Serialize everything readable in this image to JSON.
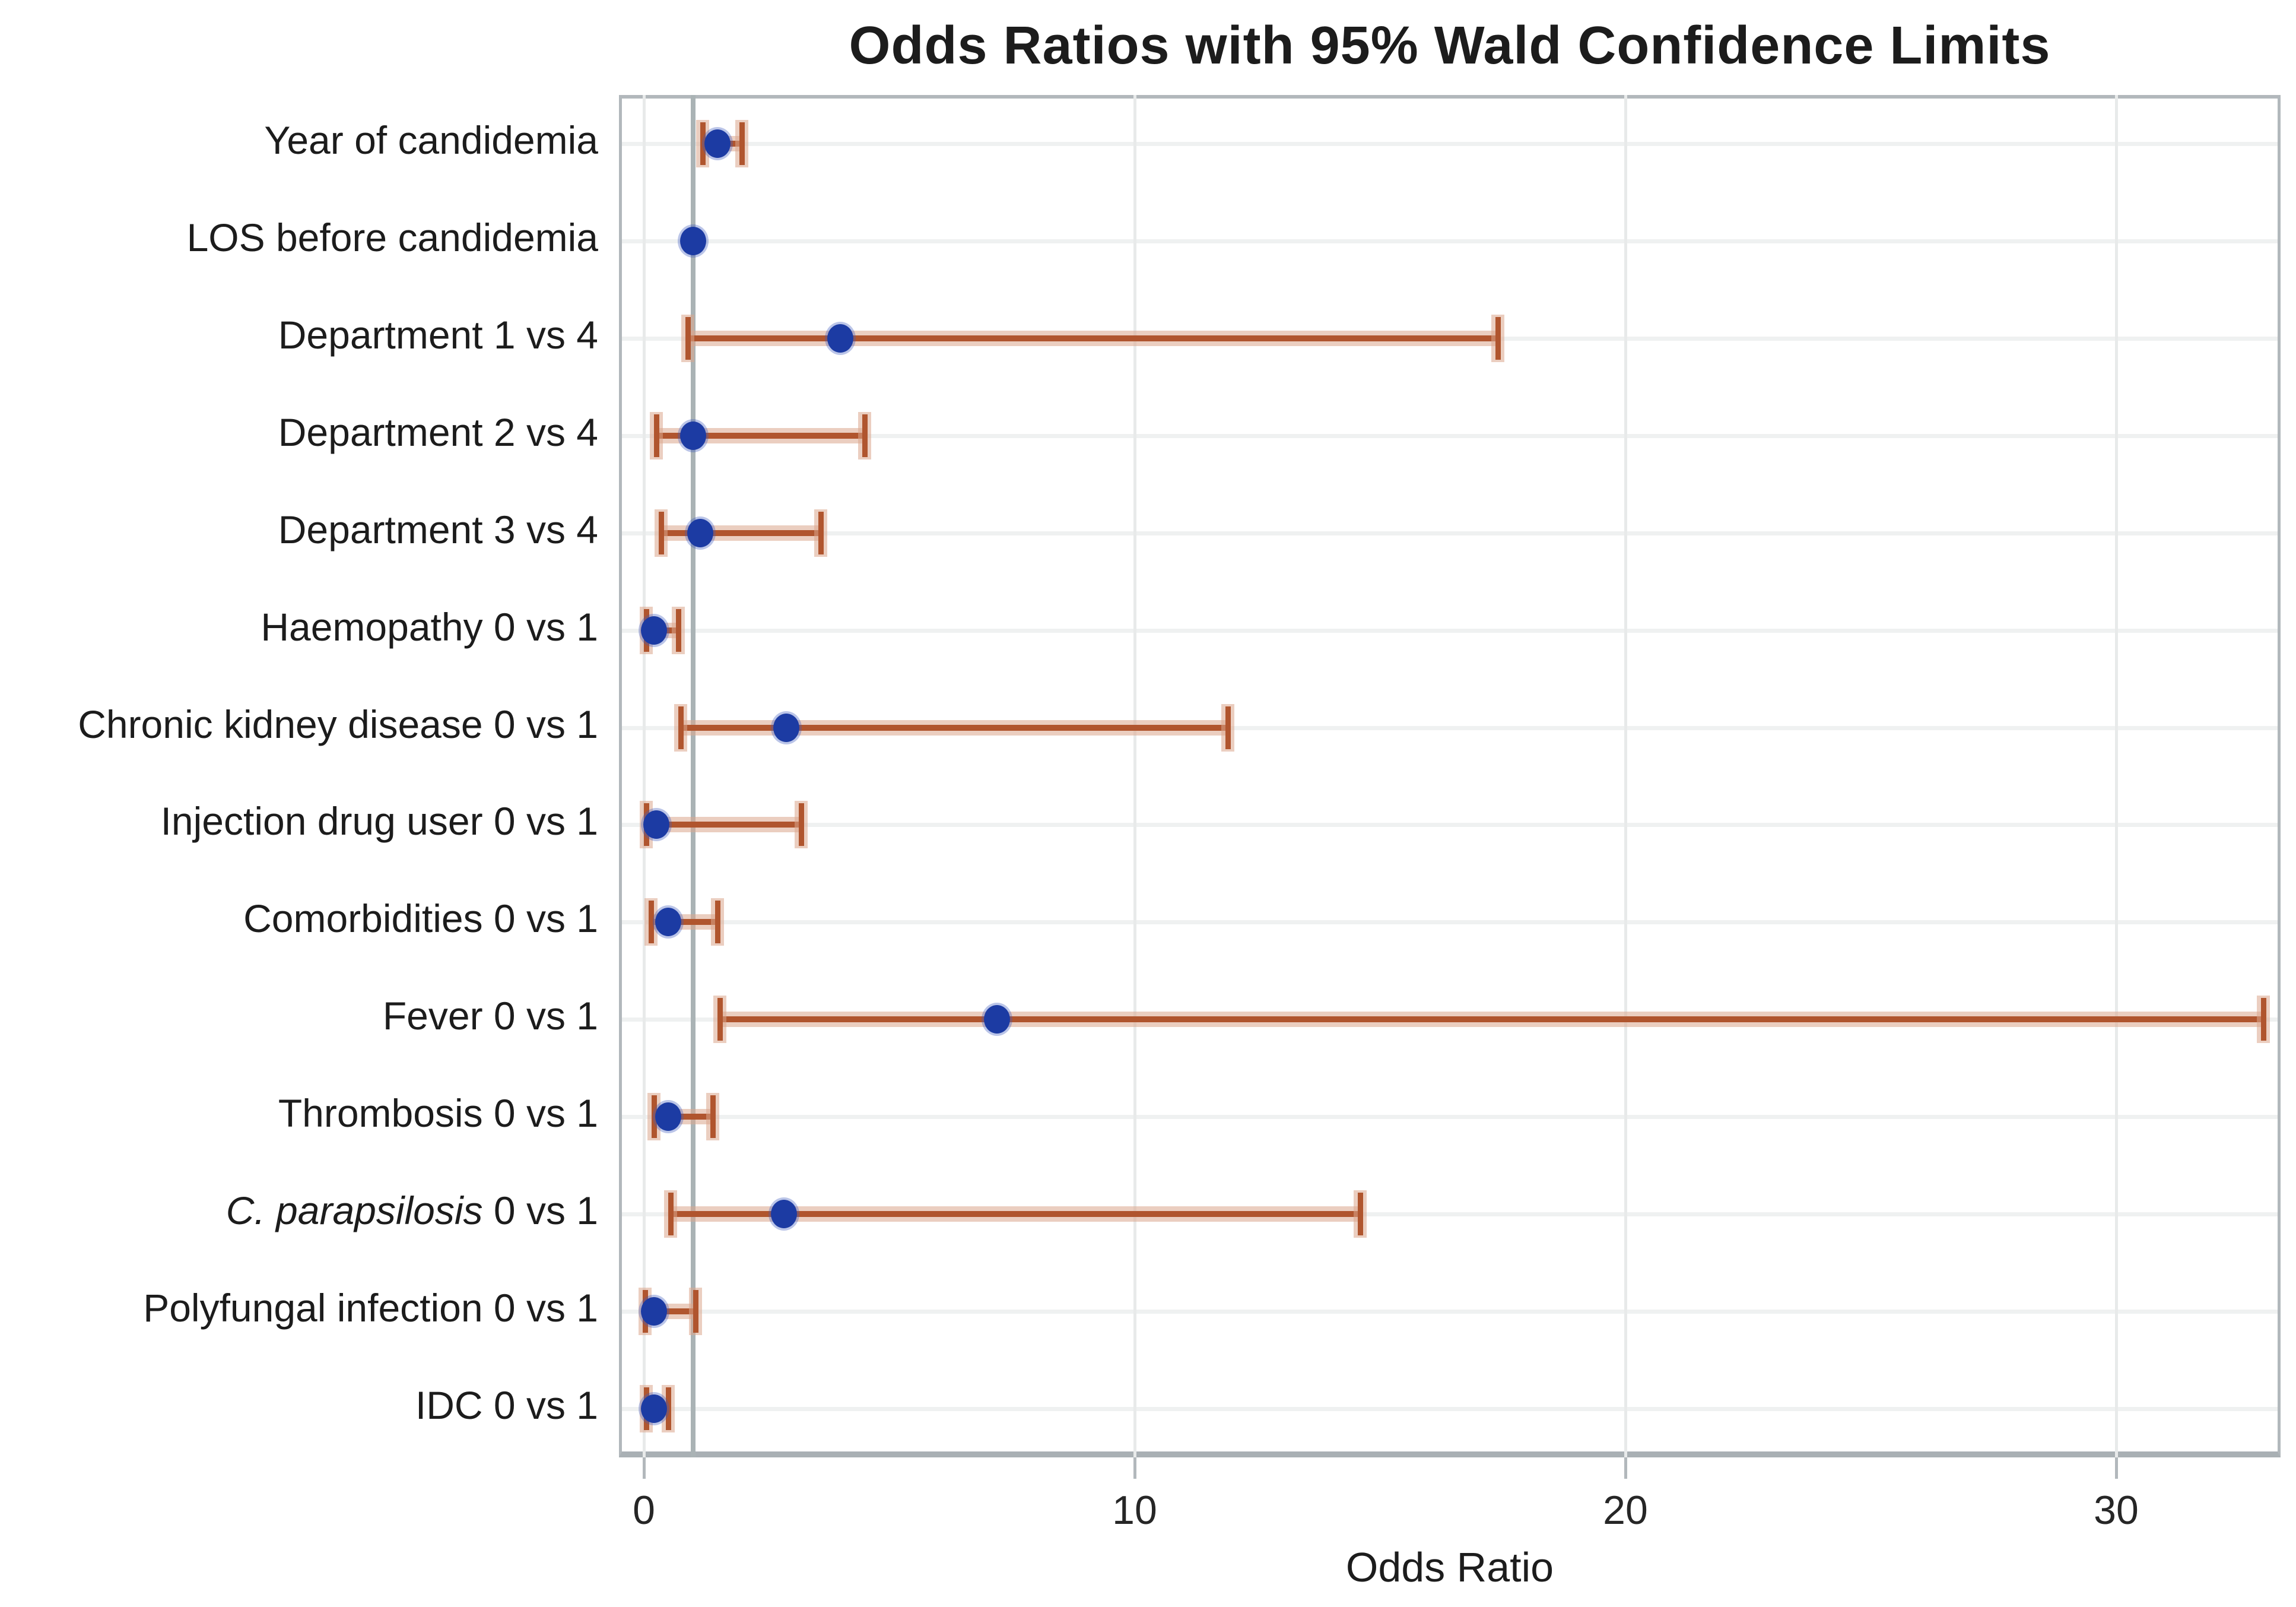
{
  "title": "Odds Ratios with 95% Wald Confidence Limits",
  "chart_data": {
    "type": "scatter",
    "subtype": "forest-plot-odds-ratios-with-95pct-ci",
    "title": "Odds Ratios with 95% Wald Confidence Limits",
    "xlabel": "Odds Ratio",
    "ylabel": "",
    "x_ticks": [
      0,
      10,
      20,
      30
    ],
    "xlim": [
      -0.5,
      33.4
    ],
    "reference_line_x": 1,
    "grid": true,
    "legend": false,
    "rows": [
      {
        "label": "Year of candidemia",
        "or": 1.5,
        "ci_low": 1.2,
        "ci_high": 2.0
      },
      {
        "label": "LOS before candidemia",
        "or": 1.0,
        "ci_low": null,
        "ci_high": null
      },
      {
        "label": "Department 1 vs 4",
        "or": 4.0,
        "ci_low": 0.9,
        "ci_high": 17.4
      },
      {
        "label": "Department 2 vs 4",
        "or": 1.0,
        "ci_low": 0.25,
        "ci_high": 4.5
      },
      {
        "label": "Department 3 vs 4",
        "or": 1.15,
        "ci_low": 0.35,
        "ci_high": 3.6
      },
      {
        "label": "Haemopathy 0 vs 1",
        "or": 0.2,
        "ci_low": 0.05,
        "ci_high": 0.7
      },
      {
        "label": "Chronic kidney disease 0 vs 1",
        "or": 2.9,
        "ci_low": 0.75,
        "ci_high": 11.9
      },
      {
        "label": "Injection drug user 0 vs 1",
        "or": 0.25,
        "ci_low": 0.05,
        "ci_high": 3.2
      },
      {
        "label": "Comorbidities 0 vs 1",
        "or": 0.5,
        "ci_low": 0.15,
        "ci_high": 1.5
      },
      {
        "label": "Fever 0 vs 1",
        "or": 7.2,
        "ci_low": 1.55,
        "ci_high": 33.0
      },
      {
        "label": "Thrombosis 0 vs 1",
        "or": 0.5,
        "ci_low": 0.2,
        "ci_high": 1.4
      },
      {
        "label": "C. parapsilosis 0 vs 1",
        "italic_prefix": "C. parapsilosis",
        "label_rest": " 0 vs 1",
        "or": 2.85,
        "ci_low": 0.55,
        "ci_high": 14.6
      },
      {
        "label": "Polyfungal infection 0 vs 1",
        "or": 0.2,
        "ci_low": 0.03,
        "ci_high": 1.05
      },
      {
        "label": "IDC 0 vs 1",
        "or": 0.2,
        "ci_low": 0.05,
        "ci_high": 0.5
      }
    ],
    "colors": {
      "marker": "#1c3ba3",
      "error_bar": "#b0552e",
      "error_bar_halo": "#dba58c",
      "reference_line": "#aab3b5",
      "gridline": "#e8eaea",
      "frame": "#b2b8bc",
      "text": "#1c1c1c",
      "background": "#ffffff"
    }
  }
}
